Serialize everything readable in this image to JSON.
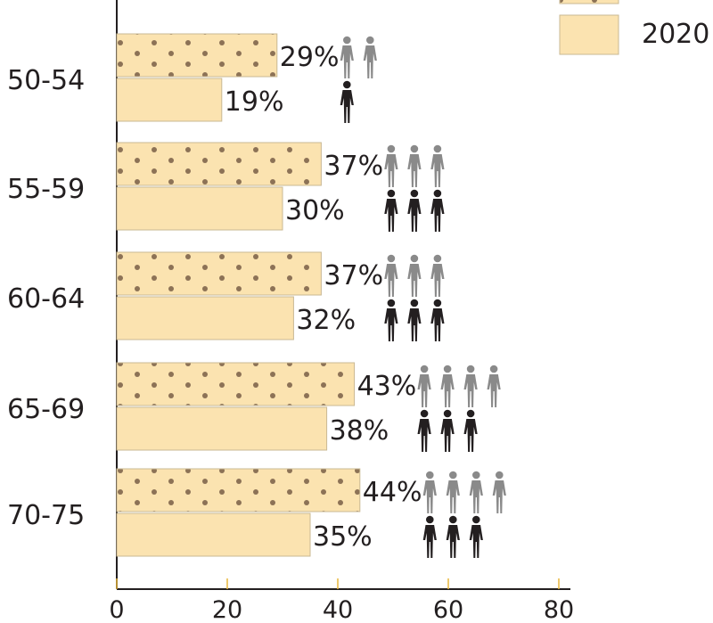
{
  "chart_data": {
    "type": "bar",
    "orientation": "horizontal",
    "categories": [
      "50-54",
      "55-59",
      "60-64",
      "65-69",
      "70-75"
    ],
    "series": [
      {
        "values": [
          29,
          37,
          37,
          43,
          44
        ],
        "value_labels": [
          "29%",
          "37%",
          "37%",
          "43%",
          "44%"
        ],
        "pattern": "dotted",
        "icon_color": "#8a8a8a"
      },
      {
        "name": "2020",
        "values": [
          19,
          30,
          32,
          38,
          35
        ],
        "value_labels": [
          "19%",
          "30%",
          "32%",
          "38%",
          "35%"
        ],
        "pattern": "solid",
        "icon_color": "#231f20"
      }
    ],
    "xticks": [
      "0",
      "20",
      "40",
      "60",
      "80"
    ],
    "xlim": [
      0,
      80
    ],
    "legend": {
      "placement": "top-right",
      "items": [
        "",
        "2020"
      ]
    },
    "grid": false,
    "pictogram_unit": 10
  },
  "colors": {
    "bar_fill": "#fbe3b0",
    "bar_stroke": "#c9b893",
    "dot": "#8c7256",
    "axis": "#231f20",
    "tick_mark": "#e8b73a"
  }
}
